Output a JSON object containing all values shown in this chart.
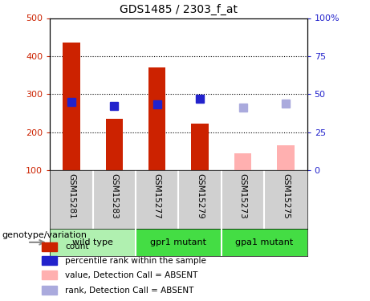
{
  "title": "GDS1485 / 2303_f_at",
  "samples": [
    "GSM15281",
    "GSM15283",
    "GSM15277",
    "GSM15279",
    "GSM15273",
    "GSM15275"
  ],
  "bar_values": [
    435,
    235,
    370,
    222,
    null,
    null
  ],
  "bar_color": "#cc2200",
  "absent_bar_values": [
    null,
    null,
    null,
    null,
    145,
    165
  ],
  "absent_bar_color": "#ffb0b0",
  "rank_values": [
    280,
    268,
    272,
    288,
    265,
    275
  ],
  "rank_present": [
    true,
    true,
    true,
    true,
    false,
    false
  ],
  "rank_present_color": "#2222cc",
  "rank_absent_color": "#aaaadd",
  "ylim_left": [
    100,
    500
  ],
  "ylim_right": [
    0,
    100
  ],
  "left_ticks": [
    100,
    200,
    300,
    400,
    500
  ],
  "right_ticks": [
    0,
    25,
    50,
    75,
    100
  ],
  "right_tick_labels": [
    "0",
    "25",
    "50",
    "75",
    "100%"
  ],
  "grid_values": [
    200,
    300,
    400
  ],
  "bar_width": 0.4,
  "rank_marker_size": 7,
  "plot_bg": "#ffffff",
  "label_area_color": "#d0d0d0",
  "group_area_color_light": "#b0f0b0",
  "group_area_color_dark": "#44dd44",
  "groups": [
    {
      "label": "wild type",
      "start": 0,
      "end": 1,
      "dark": false
    },
    {
      "label": "gpr1 mutant",
      "start": 2,
      "end": 3,
      "dark": true
    },
    {
      "label": "gpa1 mutant",
      "start": 4,
      "end": 5,
      "dark": true
    }
  ],
  "legend_items": [
    {
      "label": "count",
      "color": "#cc2200"
    },
    {
      "label": "percentile rank within the sample",
      "color": "#2222cc"
    },
    {
      "label": "value, Detection Call = ABSENT",
      "color": "#ffb0b0"
    },
    {
      "label": "rank, Detection Call = ABSENT",
      "color": "#aaaadd"
    }
  ],
  "genotype_label": "genotype/variation",
  "title_fontsize": 10,
  "tick_fontsize": 8,
  "sample_fontsize": 7.5,
  "group_fontsize": 8,
  "legend_fontsize": 7.5,
  "genotype_fontsize": 8
}
